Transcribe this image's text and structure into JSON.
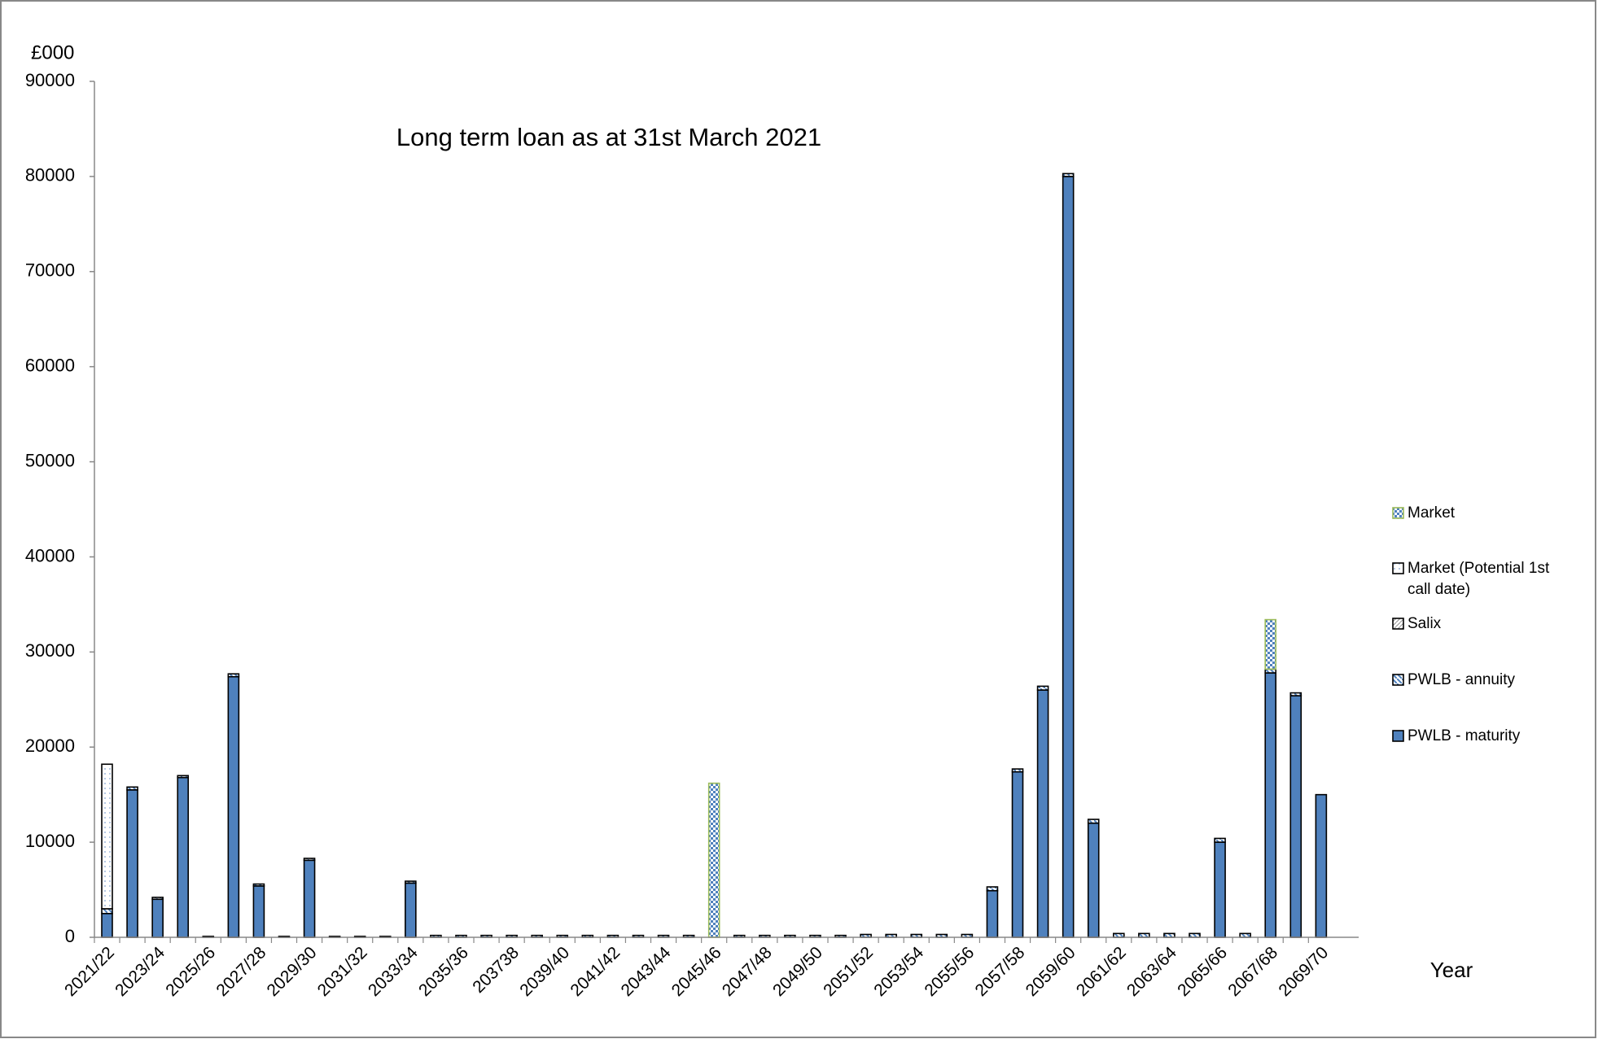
{
  "chart_data": {
    "type": "stacked-bar",
    "title": "Long term loan as at 31st March 2021",
    "y_label": "£000",
    "x_label": "Year",
    "categories": [
      "2021/22",
      null,
      "2023/24",
      null,
      "2025/26",
      null,
      "2027/28",
      null,
      "2029/30",
      null,
      "2031/32",
      null,
      "2033/34",
      null,
      "2035/36",
      null,
      "203738",
      null,
      "2039/40",
      null,
      "2041/42",
      null,
      "2043/44",
      null,
      "2045/46",
      null,
      "2047/48",
      null,
      "2049/50",
      null,
      "2051/52",
      null,
      "2053/54",
      null,
      "2055/56",
      null,
      "2057/58",
      null,
      "2059/60",
      null,
      "2061/62",
      null,
      "2063/64",
      null,
      "2065/66",
      null,
      "2067/68",
      null,
      "2069/70"
    ],
    "series": [
      {
        "name": "Market",
        "color": "#4f81bd",
        "values": [
          0,
          0,
          0,
          0,
          0,
          0,
          0,
          0,
          0,
          0,
          0,
          0,
          0,
          0,
          0,
          0,
          0,
          0,
          0,
          0,
          0,
          0,
          0,
          0,
          16200,
          0,
          0,
          0,
          0,
          0,
          0,
          0,
          0,
          0,
          0,
          0,
          0,
          0,
          0,
          0,
          0,
          0,
          0,
          0,
          0,
          0,
          5200,
          0,
          0
        ]
      },
      {
        "name": "Market (Potential 1st call date)",
        "color": "#ffffff",
        "values": [
          15200,
          0,
          0,
          0,
          0,
          0,
          0,
          0,
          0,
          0,
          0,
          0,
          0,
          0,
          0,
          0,
          0,
          0,
          0,
          0,
          0,
          0,
          0,
          0,
          0,
          0,
          0,
          0,
          0,
          0,
          0,
          0,
          0,
          0,
          0,
          0,
          0,
          0,
          0,
          0,
          0,
          0,
          0,
          0,
          0,
          0,
          0,
          0,
          0
        ]
      },
      {
        "name": "Salix",
        "color": "#ffffff",
        "values": [
          0,
          0,
          0,
          0,
          0,
          0,
          0,
          0,
          0,
          0,
          0,
          0,
          0,
          0,
          0,
          0,
          0,
          0,
          0,
          0,
          0,
          0,
          0,
          0,
          0,
          0,
          0,
          0,
          0,
          0,
          0,
          0,
          0,
          0,
          0,
          0,
          0,
          0,
          0,
          0,
          0,
          0,
          0,
          0,
          0,
          0,
          0,
          0,
          0
        ]
      },
      {
        "name": "PWLB - annuity",
        "color": "#ffffff",
        "values": [
          500,
          300,
          200,
          200,
          100,
          300,
          200,
          100,
          200,
          100,
          100,
          100,
          200,
          200,
          200,
          200,
          200,
          200,
          200,
          200,
          200,
          200,
          200,
          200,
          0,
          200,
          200,
          200,
          200,
          200,
          300,
          300,
          300,
          300,
          300,
          400,
          300,
          400,
          300,
          400,
          400,
          400,
          400,
          400,
          400,
          400,
          400,
          300,
          0
        ]
      },
      {
        "name": "PWLB - maturity",
        "color": "#4f81bd",
        "values": [
          2500,
          15500,
          4000,
          16800,
          0,
          27400,
          5400,
          0,
          8100,
          0,
          0,
          0,
          5700,
          0,
          0,
          0,
          0,
          0,
          0,
          0,
          0,
          0,
          0,
          0,
          0,
          0,
          0,
          0,
          0,
          0,
          0,
          0,
          0,
          0,
          0,
          4900,
          17400,
          26000,
          80000,
          12000,
          0,
          0,
          0,
          0,
          10000,
          0,
          27800,
          25400,
          15000
        ]
      }
    ],
    "ylim": [
      0,
      90000
    ],
    "yticks": [
      0,
      10000,
      20000,
      30000,
      40000,
      50000,
      60000,
      70000,
      80000,
      90000
    ],
    "legend": "right"
  }
}
